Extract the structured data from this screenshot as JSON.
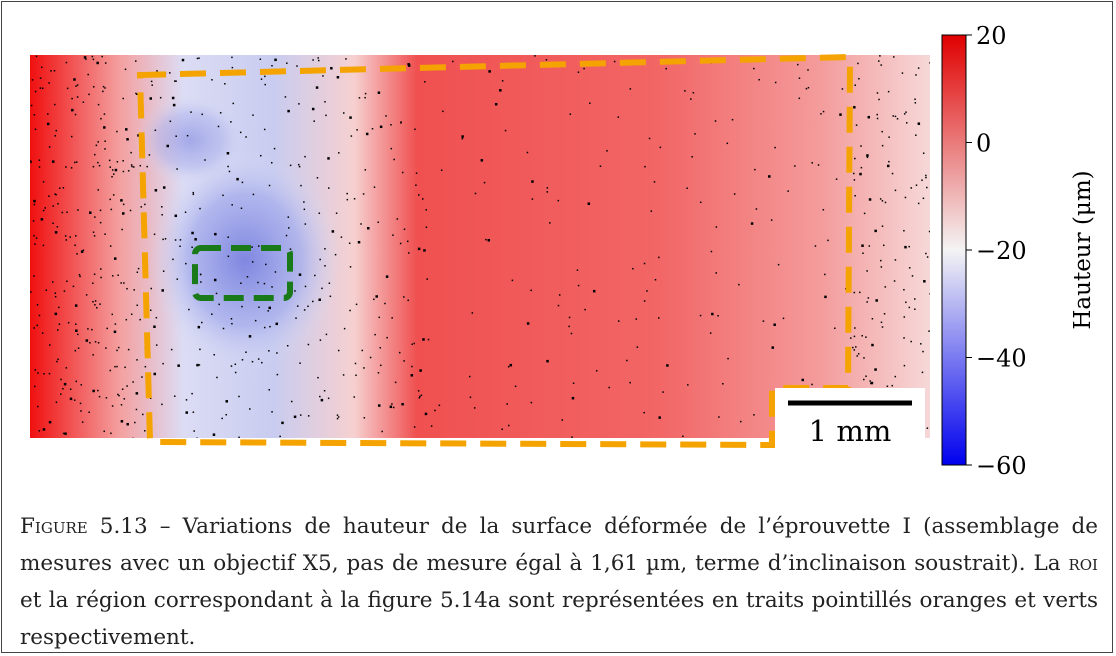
{
  "figure": {
    "scale_bar": "1 mm",
    "colorbar": {
      "label": "Hauteur (μm)",
      "lim": [
        -60,
        20
      ],
      "ticks": [
        20,
        0,
        {
          "value": -20,
          "label": "−20"
        },
        {
          "value": -40,
          "label": "−40"
        },
        {
          "value": -60,
          "label": "−60"
        }
      ]
    }
  },
  "caption": {
    "label": "Figure 5.13",
    "before": " – Variations de hauteur de la surface déformée de l’éprouvette I (assemblage de mesures avec un objectif X5, pas de mesure égal à 1,61 µm, terme d’inclinaison soustrait). La ",
    "abbr": "roi",
    "after": " et la région correspondant à la figure 5.14a sont représentées en traits pointillés oranges et verts respectivement."
  }
}
